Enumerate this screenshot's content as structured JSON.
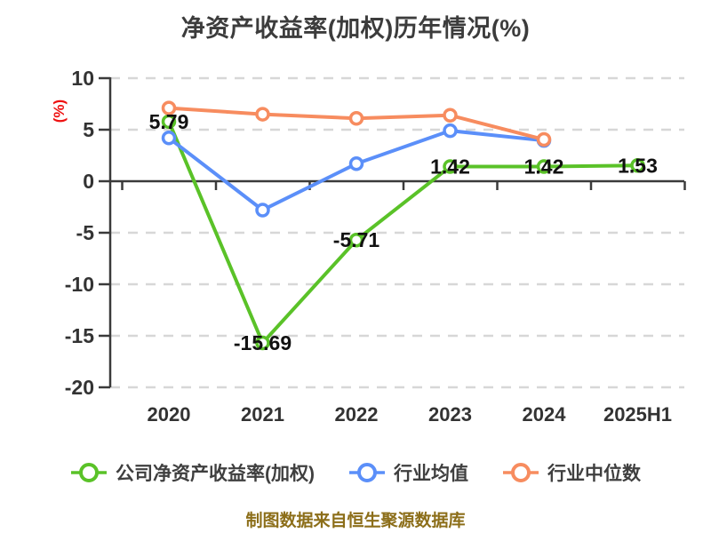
{
  "title": "净资产收益率(加权)历年情况(%)",
  "source_note": "制图数据来自恒生聚源数据库",
  "palette": {
    "company_green": "#5ac228",
    "industry_mean_blue": "#5b8ff9",
    "industry_median_orange": "#f78c5f",
    "axis": "#3a3a3a",
    "grid": "#d7d7d7",
    "tick_text": "#333333",
    "data_label": "#111111",
    "ylabel_red": "#ee1111",
    "source_gold": "#8c6e19"
  },
  "chart_data": {
    "type": "line",
    "title": "净资产收益率(加权)历年情况(%)",
    "categories": [
      "2020",
      "2021",
      "2022",
      "2023",
      "2024",
      "2025H1"
    ],
    "series": [
      {
        "key": "company-roe-weighted",
        "name": "公司净资产收益率(加权)",
        "color": "#5ac228",
        "values": [
          5.79,
          -15.69,
          -5.71,
          1.42,
          1.42,
          1.53
        ],
        "labels": [
          "5.79",
          "-15.69",
          "-5.71",
          "1.42",
          "1.42",
          "1.53"
        ]
      },
      {
        "key": "industry-mean",
        "name": "行业均值",
        "color": "#5b8ff9",
        "values": [
          4.2,
          -2.8,
          1.7,
          4.9,
          3.95,
          null
        ],
        "labels": null
      },
      {
        "key": "industry-median",
        "name": "行业中位数",
        "color": "#f78c5f",
        "values": [
          7.1,
          6.5,
          6.1,
          6.4,
          4.05,
          null
        ],
        "labels": null
      }
    ],
    "ylabel": "(%)",
    "ylim": [
      -20,
      10
    ],
    "yticks": [
      10,
      5,
      0,
      -5,
      -10,
      -15,
      -20
    ],
    "grid": "horizontal-dashed",
    "legend_position": "bottom"
  }
}
